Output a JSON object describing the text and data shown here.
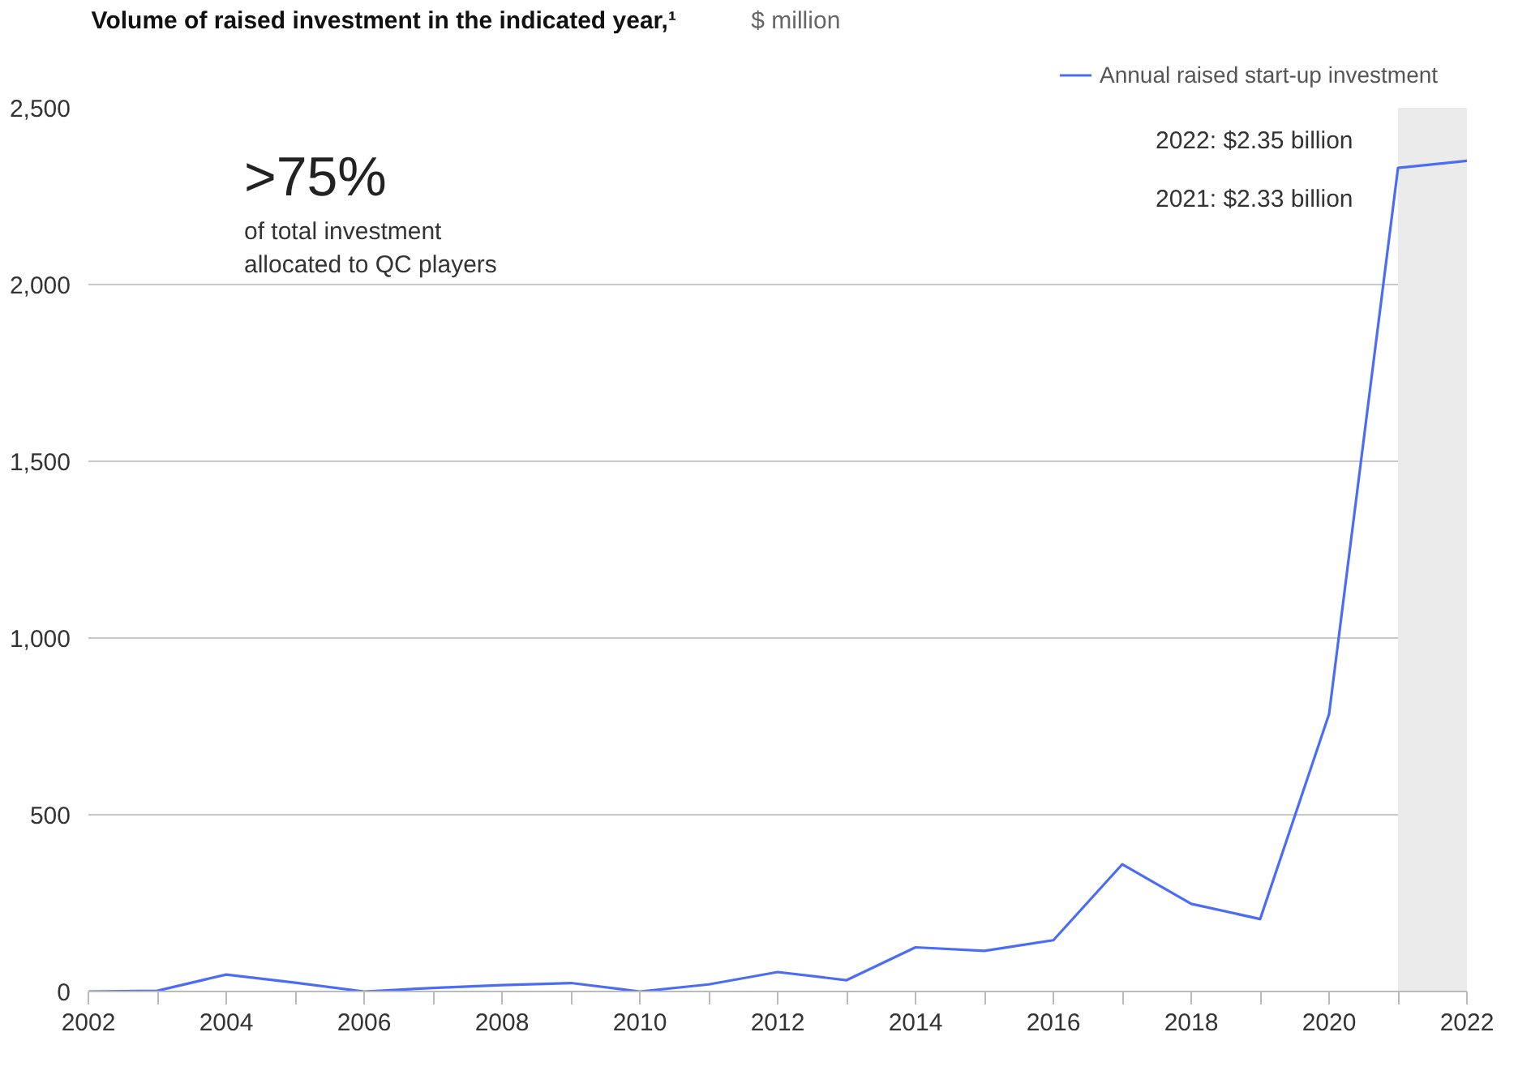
{
  "chart_data": {
    "type": "line",
    "title": "Volume of raised investment in the indicated year,¹",
    "x": [
      2002,
      2003,
      2004,
      2005,
      2006,
      2007,
      2008,
      2009,
      2010,
      2011,
      2012,
      2013,
      2014,
      2015,
      2016,
      2017,
      2018,
      2019,
      2020,
      2021,
      2022
    ],
    "series": [
      {
        "name": "Annual raised start-up investment",
        "color": "#4a6cf7",
        "values": [
          0,
          2,
          48,
          25,
          0,
          10,
          18,
          24,
          0,
          20,
          55,
          32,
          125,
          115,
          145,
          360,
          248,
          205,
          785,
          2330,
          2350
        ]
      }
    ],
    "xlim": [
      2002,
      2022
    ],
    "xticks": [
      2002,
      {
        "value": 2003,
        "label": null
      },
      2004,
      {
        "value": 2005,
        "label": null
      },
      2006,
      {
        "value": 2007,
        "label": null
      },
      2008,
      {
        "value": 2009,
        "label": null
      },
      2010,
      {
        "value": 2011,
        "label": null
      },
      2012,
      {
        "value": 2013,
        "label": null
      },
      2014,
      {
        "value": 2015,
        "label": null
      },
      2016,
      {
        "value": 2017,
        "label": null
      },
      2018,
      {
        "value": 2019,
        "label": null
      },
      2020,
      {
        "value": 2021,
        "label": null
      },
      2022
    ],
    "ylim": [
      0,
      2500
    ],
    "yticks": [
      0,
      {
        "value": 500,
        "label": "500"
      },
      {
        "value": 1000,
        "label": "1,000"
      },
      {
        "value": 1500,
        "label": "1,500"
      },
      {
        "value": 2000,
        "label": "2,000"
      },
      {
        "value": 2500,
        "label": "2,500"
      }
    ],
    "bands": [
      {
        "axis": "x",
        "from": 2021,
        "to": 2022,
        "color": "#ebebeb"
      }
    ],
    "annotations": [
      "$ million",
      ">75%",
      "of total investment\nallocated to QC players",
      "2022:  $2.35 billion",
      "2021:  $2.33 billion"
    ],
    "grid": "y",
    "legend": "top right",
    "marker": "none",
    "line_style": "solid"
  }
}
